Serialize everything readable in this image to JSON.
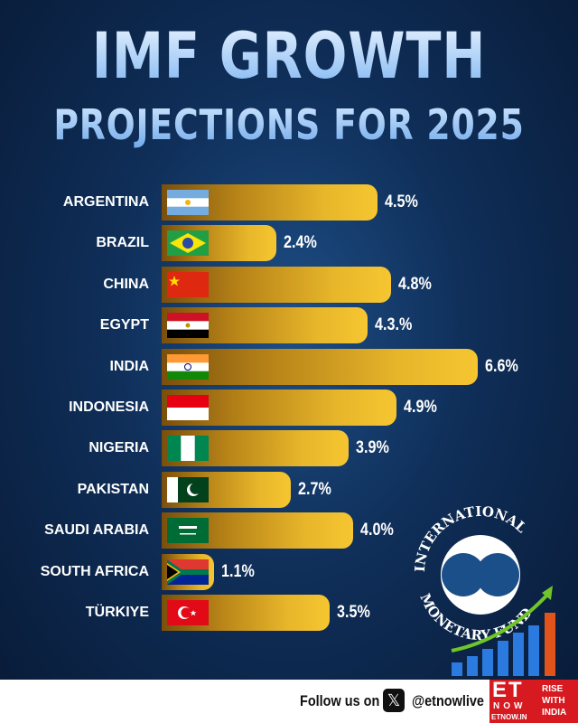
{
  "header": {
    "title_line1": "IMF GROWTH",
    "title_line2": "PROJECTIONS FOR 2025"
  },
  "chart_data": {
    "type": "bar",
    "orientation": "horizontal",
    "title": "IMF GROWTH PROJECTIONS FOR 2025",
    "categories": [
      "ARGENTINA",
      "BRAZIL",
      "CHINA",
      "EGYPT",
      "INDIA",
      "INDONESIA",
      "NIGERIA",
      "PAKISTAN",
      "SAUDI ARABIA",
      "SOUTH AFRICA",
      "TÜRKIYE"
    ],
    "values": [
      4.5,
      2.4,
      4.8,
      4.3,
      6.6,
      4.9,
      3.9,
      2.7,
      4.0,
      1.1,
      3.5
    ],
    "labels": [
      "4.5%",
      "2.4%",
      "4.8%",
      "4.3.%",
      "6.6%",
      "4.9%",
      "3.9%",
      "2.7%",
      "4.0%",
      "1.1%",
      "3.5%"
    ],
    "flags": [
      "ar",
      "br",
      "cn",
      "eg",
      "in",
      "id",
      "ng",
      "pk",
      "sa",
      "za",
      "tr"
    ],
    "bar_color": "#f6c631",
    "grid": false
  },
  "logo": {
    "text": "INTERNATIONAL MONETARY FUND"
  },
  "footer": {
    "follow": "Follow us on",
    "handle": "@etnowlive",
    "brand_big": "ET",
    "brand_now": "NOW",
    "brand_url": "ETNOW.IN",
    "tagline": "RISE\nWITH\nINDIA"
  },
  "colors": {
    "background": "#0f2e58",
    "bar_end": "#f6c631",
    "bar_start": "#7a4f0c",
    "brand_red": "#d71920"
  }
}
